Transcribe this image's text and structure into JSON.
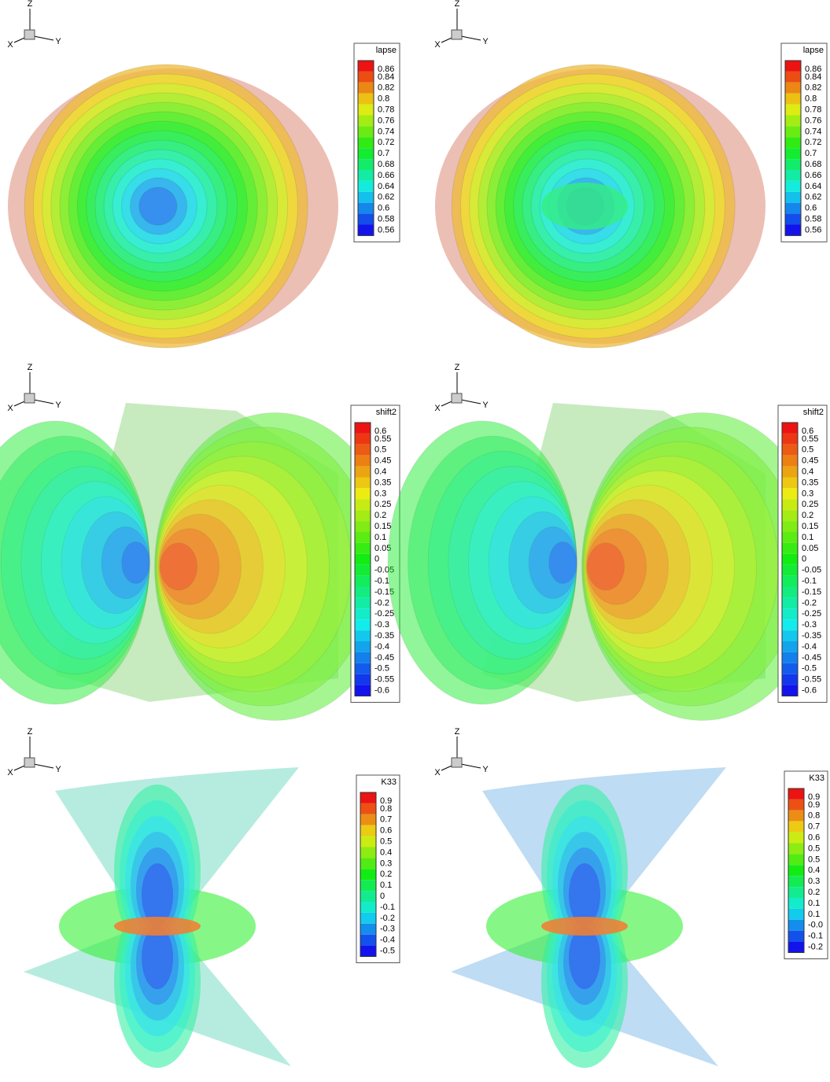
{
  "panels": [
    {
      "triad": {
        "z": "Z",
        "x": "X",
        "y": "Y"
      },
      "legend": {
        "title": "lapse",
        "labels": [
          "0.86",
          "0.84",
          "0.82",
          "0.8",
          "0.78",
          "0.76",
          "0.74",
          "0.72",
          "0.7",
          "0.68",
          "0.66",
          "0.64",
          "0.62",
          "0.6",
          "0.58",
          "0.56"
        ]
      }
    },
    {
      "triad": {
        "z": "Z",
        "x": "X",
        "y": "Y"
      },
      "legend": {
        "title": "lapse",
        "labels": [
          "0.86",
          "0.84",
          "0.82",
          "0.8",
          "0.78",
          "0.76",
          "0.74",
          "0.72",
          "0.7",
          "0.68",
          "0.66",
          "0.64",
          "0.62",
          "0.6",
          "0.58",
          "0.56"
        ]
      }
    },
    {
      "triad": {
        "z": "Z",
        "x": "X",
        "y": "Y"
      },
      "legend": {
        "title": "shift2",
        "labels": [
          "0.6",
          "0.55",
          "0.5",
          "0.45",
          "0.4",
          "0.35",
          "0.3",
          "0.25",
          "0.2",
          "0.15",
          "0.1",
          "0.05",
          "0",
          "-0.05",
          "-0.1",
          "-0.15",
          "-0.2",
          "-0.25",
          "-0.3",
          "-0.35",
          "-0.4",
          "-0.45",
          "-0.5",
          "-0.55",
          "-0.6"
        ]
      }
    },
    {
      "triad": {
        "z": "Z",
        "x": "X",
        "y": "Y"
      },
      "legend": {
        "title": "shift2",
        "labels": [
          "0.6",
          "0.55",
          "0.5",
          "0.45",
          "0.4",
          "0.35",
          "0.3",
          "0.25",
          "0.2",
          "0.15",
          "0.1",
          "0.05",
          "0",
          "-0.05",
          "-0.1",
          "-0.15",
          "-0.2",
          "-0.25",
          "-0.3",
          "-0.35",
          "-0.4",
          "-0.45",
          "-0.5",
          "-0.55",
          "-0.6"
        ]
      }
    },
    {
      "triad": {
        "z": "Z",
        "x": "X",
        "y": "Y"
      },
      "legend": {
        "title": "K33",
        "labels": [
          "0.9",
          "0.8",
          "0.7",
          "0.6",
          "0.5",
          "0.4",
          "0.3",
          "0.2",
          "0.1",
          "0",
          "-0.1",
          "-0.2",
          "-0.3",
          "-0.4",
          "-0.5"
        ]
      }
    },
    {
      "triad": {
        "z": "Z",
        "x": "X",
        "y": "Y"
      },
      "legend": {
        "title": "K33",
        "labels": [
          "0.9",
          "0.9",
          "0.8",
          "0.7",
          "0.6",
          "0.5",
          "0.5",
          "0.4",
          "0.3",
          "0.2",
          "0.1",
          "0.1",
          "-0.0",
          "-0.1",
          "-0.2"
        ]
      }
    }
  ]
}
